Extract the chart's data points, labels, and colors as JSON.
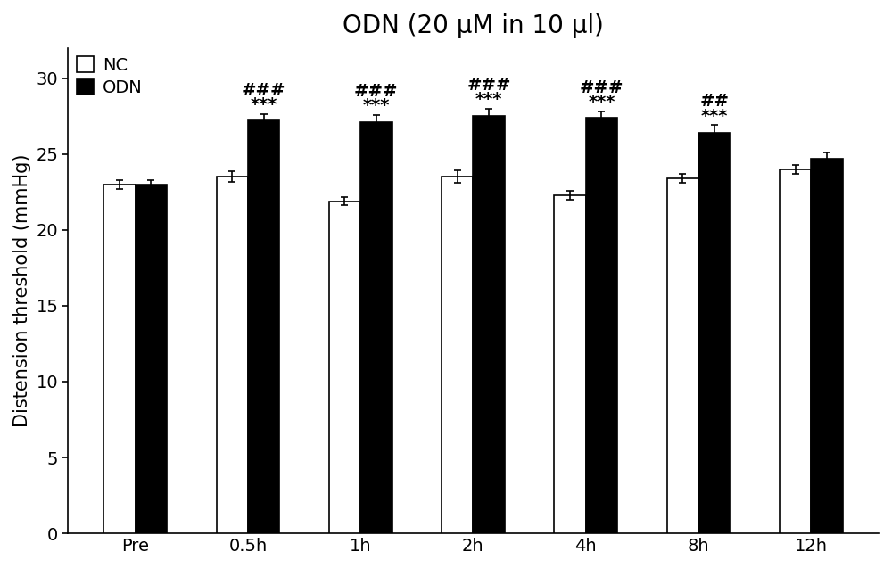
{
  "title": "ODN (20 μM in 10 μl)",
  "ylabel": "Distension threshold (mmHg)",
  "categories": [
    "Pre",
    "0.5h",
    "1h",
    "2h",
    "4h",
    "8h",
    "12h"
  ],
  "nc_values": [
    23.0,
    23.5,
    21.9,
    23.5,
    22.3,
    23.4,
    24.0
  ],
  "odn_values": [
    23.0,
    27.2,
    27.1,
    27.5,
    27.4,
    26.4,
    24.7
  ],
  "nc_errors": [
    0.3,
    0.35,
    0.25,
    0.4,
    0.3,
    0.3,
    0.3
  ],
  "odn_errors": [
    0.3,
    0.45,
    0.5,
    0.5,
    0.4,
    0.5,
    0.4
  ],
  "nc_color": "#ffffff",
  "odn_color": "#000000",
  "bar_edge_color": "#000000",
  "ylim": [
    0,
    32
  ],
  "yticks": [
    0,
    5,
    10,
    15,
    20,
    25,
    30
  ],
  "title_fontsize": 20,
  "axis_label_fontsize": 15,
  "tick_fontsize": 14,
  "legend_fontsize": 14,
  "annotation_fontsize": 14,
  "hash_annotations": [
    "",
    "###",
    "###",
    "###",
    "###",
    "##",
    ""
  ],
  "star_annotations": [
    "",
    "***",
    "***",
    "***",
    "***",
    "***",
    ""
  ],
  "bar_width": 0.28,
  "background_color": "#ffffff"
}
